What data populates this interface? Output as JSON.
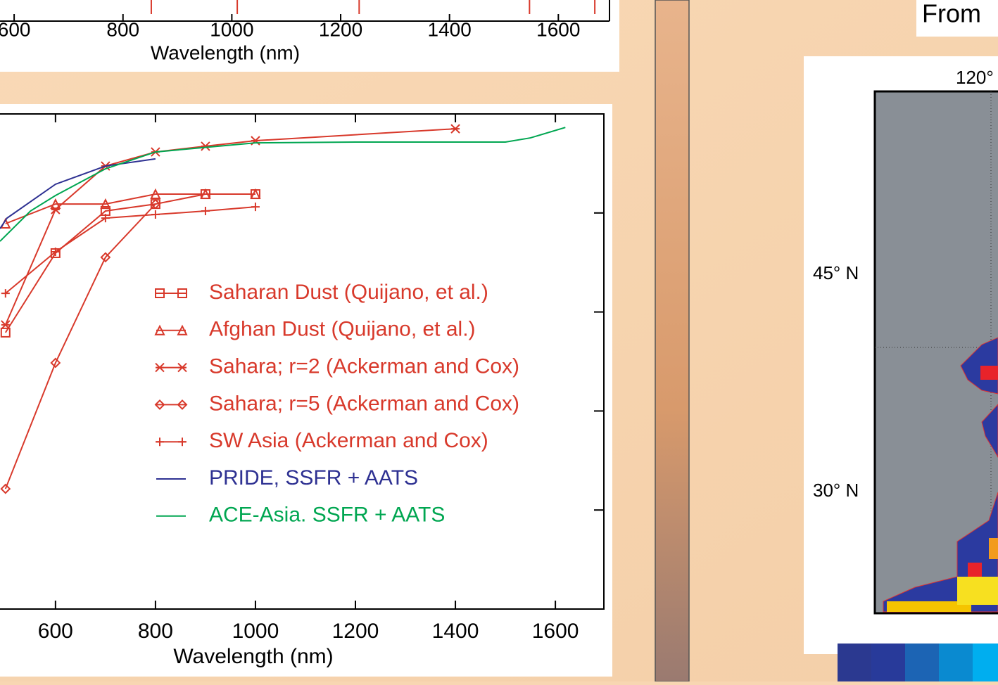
{
  "chart_data": [
    {
      "type": "line",
      "x_label": "Wavelength (nm)",
      "xlim": [
        489,
        1697
      ],
      "xticks": [
        600,
        800,
        1000,
        1200,
        1400,
        1600
      ],
      "ylim": [
        0.75,
        1.0
      ],
      "yticks": [
        0.75,
        0.8,
        0.85,
        0.9,
        0.95,
        1.0
      ],
      "series": [
        {
          "name": "Saharan Dust (Quijano, et al.)",
          "color": "#d8392b",
          "marker": "square",
          "x": [
            500,
            600,
            700,
            800,
            900,
            1000
          ],
          "values": [
            0.8896,
            0.9297,
            0.951,
            0.9545,
            0.9595,
            0.9595
          ]
        },
        {
          "name": "Afghan Dust (Quijano, et al.)",
          "color": "#d8392b",
          "marker": "triangle",
          "x": [
            500,
            600,
            700,
            800,
            900,
            1000
          ],
          "values": [
            0.9446,
            0.9545,
            0.9545,
            0.9595,
            0.9595,
            0.9595
          ]
        },
        {
          "name": "Sahara; r=2 (Ackerman and Cox)",
          "color": "#d8392b",
          "marker": "asterisk",
          "x": [
            500,
            600,
            700,
            800,
            900,
            1000,
            1400
          ],
          "values": [
            0.8935,
            0.9517,
            0.9737,
            0.9808,
            0.9837,
            0.9865,
            0.9925
          ]
        },
        {
          "name": "Sahara; r=5 (Ackerman and Cox)",
          "color": "#d8392b",
          "marker": "diamond",
          "x": [
            500,
            600,
            700,
            800
          ],
          "values": [
            0.8107,
            0.8743,
            0.9276,
            0.9545
          ]
        },
        {
          "name": "SW Asia (Ackerman and Cox)",
          "color": "#d8392b",
          "marker": "plus",
          "x": [
            500,
            600,
            700,
            800,
            900,
            1000
          ],
          "values": [
            0.9094,
            0.9304,
            0.9474,
            0.9492,
            0.951,
            0.9531
          ]
        },
        {
          "name": "PRIDE, SSFR + AATS",
          "color": "#2e3192",
          "x": [
            489,
            503,
            600,
            700,
            800
          ],
          "values": [
            0.9421,
            0.9474,
            0.9645,
            0.9737,
            0.9773
          ]
        },
        {
          "name": "ACE-Asia. SSFR + AATS",
          "color": "#00a651",
          "x": [
            489,
            550,
            600,
            700,
            800,
            1000,
            1200,
            1400,
            1500,
            1550,
            1620
          ],
          "values": [
            0.9357,
            0.951,
            0.9588,
            0.9723,
            0.9808,
            0.9854,
            0.9858,
            0.9858,
            0.9858,
            0.9879,
            0.9932
          ]
        }
      ]
    },
    {
      "type": "stem",
      "x_label": "Wavelength (nm)",
      "color": "#d8392b",
      "xlim": [
        574,
        1694
      ],
      "xticks": [
        600,
        800,
        1000,
        1200,
        1400,
        1600
      ],
      "x": [
        852,
        1010,
        1234,
        1547,
        1667
      ]
    }
  ],
  "map": {
    "header": "From",
    "lon_label": "120°",
    "lat_labels": [
      "45° N",
      "30° N"
    ]
  }
}
